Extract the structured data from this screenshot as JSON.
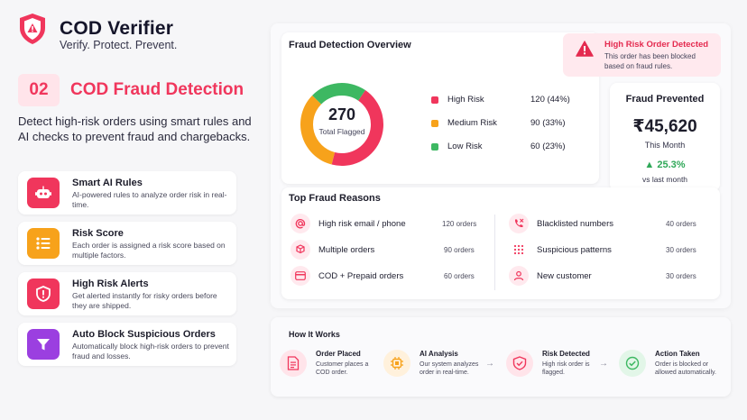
{
  "brand": {
    "name": "COD Verifier",
    "tagline": "Verify. Protect. Prevent."
  },
  "section": {
    "number": "02",
    "title": "COD Fraud Detection",
    "description": "Detect high-risk orders using smart rules and AI checks to prevent fraud and chargebacks."
  },
  "features": [
    {
      "title": "Smart AI Rules",
      "desc": "AI-powered rules to analyze order risk in real-time.",
      "icon": "robot-icon",
      "color": "#f0365c"
    },
    {
      "title": "Risk Score",
      "desc": "Each order is assigned a risk score based on multiple factors.",
      "icon": "list-icon",
      "color": "#f7a21b"
    },
    {
      "title": "High Risk Alerts",
      "desc": "Get alerted instantly for risky orders before they are shipped.",
      "icon": "shield-alert-icon",
      "color": "#f0365c"
    },
    {
      "title": "Auto Block Suspicious Orders",
      "desc": "Automatically block high-risk orders to prevent fraud and losses.",
      "icon": "filter-icon",
      "color": "#9b3fe0"
    }
  ],
  "overview": {
    "title": "Fraud Detection Overview",
    "total_value": "270",
    "total_label": "Total Flagged",
    "segments": [
      {
        "name": "High Risk",
        "value": "120 (44%)",
        "count": 120,
        "color": "#f0365c"
      },
      {
        "name": "Medium Risk",
        "value": "90 (33%)",
        "count": 90,
        "color": "#f7a21b"
      },
      {
        "name": "Low Risk",
        "value": "60 (23%)",
        "count": 60,
        "color": "#3db862"
      }
    ]
  },
  "alert": {
    "title": "High Risk Order Detected",
    "desc": "This order has been blocked based on fraud rules."
  },
  "prevented": {
    "title": "Fraud Prevented",
    "amount": "₹45,620",
    "period": "This Month",
    "change": "25.3%",
    "compare": "vs last month"
  },
  "reasons": {
    "title": "Top Fraud Reasons",
    "left": [
      {
        "label": "High risk email / phone",
        "count": "120 orders",
        "icon": "at-sign-icon"
      },
      {
        "label": "Multiple orders",
        "count": "90 orders",
        "icon": "boxes-icon"
      },
      {
        "label": "COD + Prepaid orders",
        "count": "60 orders",
        "icon": "card-icon"
      }
    ],
    "right": [
      {
        "label": "Blacklisted numbers",
        "count": "40 orders",
        "icon": "phone-block-icon"
      },
      {
        "label": "Suspicious patterns",
        "count": "30 orders",
        "icon": "grid-dots-icon"
      },
      {
        "label": "New customer",
        "count": "30 orders",
        "icon": "user-icon"
      }
    ]
  },
  "how": {
    "title": "How It Works",
    "steps": [
      {
        "title": "Order Placed",
        "desc": "Customer places a COD order.",
        "icon": "document-icon"
      },
      {
        "title": "AI Analysis",
        "desc": "Our system analyzes order in real-time.",
        "icon": "chip-icon"
      },
      {
        "title": "Risk Detected",
        "desc": "High risk order is flagged.",
        "icon": "shield-check-icon"
      },
      {
        "title": "Action Taken",
        "desc": "Order is blocked or allowed automatically.",
        "icon": "check-circle-icon"
      }
    ],
    "arrow": "→"
  }
}
